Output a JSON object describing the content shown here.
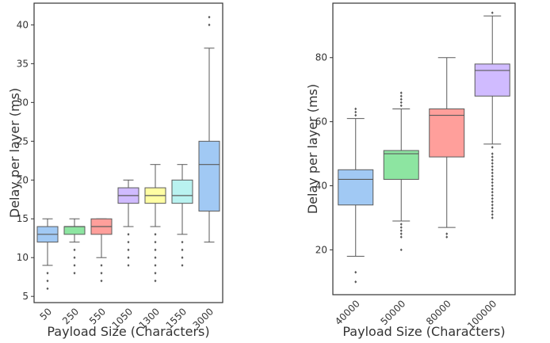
{
  "chart_data": [
    {
      "type": "box",
      "xlabel": "Payload Size (Characters)",
      "ylabel": "Delay per layer (ms)",
      "ylim": [
        4.2,
        42.8
      ],
      "yticks": [
        5,
        10,
        15,
        20,
        25,
        30,
        35,
        40
      ],
      "categories": [
        "50",
        "250",
        "550",
        "1050",
        "1300",
        "1550",
        "3000"
      ],
      "colors": [
        "#a1c9f4",
        "#8de5a1",
        "#ff9f9b",
        "#d0bbff",
        "#fffea3",
        "#b9f2f0",
        "#a1c9f4"
      ],
      "boxes": [
        {
          "whisker_low": 9,
          "q1": 12,
          "median": 13,
          "q3": 14,
          "whisker_high": 15,
          "outliers": [
            8,
            7,
            6
          ]
        },
        {
          "whisker_low": 12,
          "q1": 13,
          "median": 14,
          "q3": 14,
          "whisker_high": 15,
          "outliers": [
            11,
            10,
            9,
            8
          ]
        },
        {
          "whisker_low": 10,
          "q1": 13,
          "median": 14,
          "q3": 15,
          "whisker_high": 15,
          "outliers": [
            9,
            8,
            7
          ]
        },
        {
          "whisker_low": 14,
          "q1": 17,
          "median": 18,
          "q3": 19,
          "whisker_high": 20,
          "outliers": [
            13,
            12,
            11,
            10,
            9
          ]
        },
        {
          "whisker_low": 14,
          "q1": 17,
          "median": 18,
          "q3": 19,
          "whisker_high": 22,
          "outliers": [
            13,
            12,
            11,
            10,
            9,
            8,
            7
          ]
        },
        {
          "whisker_low": 13,
          "q1": 17,
          "median": 18,
          "q3": 20,
          "whisker_high": 22,
          "outliers": [
            12,
            11,
            10,
            9
          ]
        },
        {
          "whisker_low": 12,
          "q1": 16,
          "median": 22,
          "q3": 25,
          "whisker_high": 37,
          "outliers": [
            40,
            41
          ]
        }
      ]
    },
    {
      "type": "box",
      "xlabel": "Payload Size (Characters)",
      "ylabel": "Delay per layer (ms)",
      "ylim": [
        6,
        97
      ],
      "yticks": [
        20,
        40,
        60,
        80
      ],
      "categories": [
        "40000",
        "50000",
        "80000",
        "100000"
      ],
      "colors": [
        "#a1c9f4",
        "#8de5a1",
        "#ff9f9b",
        "#d0bbff"
      ],
      "boxes": [
        {
          "whisker_low": 18,
          "q1": 34,
          "median": 42,
          "q3": 45,
          "whisker_high": 61,
          "outliers": [
            62,
            63,
            64,
            13,
            10
          ]
        },
        {
          "whisker_low": 29,
          "q1": 42,
          "median": 50,
          "q3": 51,
          "whisker_high": 64,
          "outliers": [
            65,
            66,
            67,
            68,
            69,
            28,
            27,
            26,
            25,
            24,
            20
          ]
        },
        {
          "whisker_low": 27,
          "q1": 49,
          "median": 62,
          "q3": 64,
          "whisker_high": 80,
          "outliers": [
            25,
            24
          ]
        },
        {
          "whisker_low": 53,
          "q1": 68,
          "median": 76,
          "q3": 78,
          "whisker_high": 93,
          "outliers": [
            94,
            52,
            50,
            49,
            48,
            47,
            46,
            45,
            44,
            43,
            42,
            41,
            40,
            39,
            38,
            37,
            36,
            35,
            34,
            33,
            32,
            31,
            30
          ]
        }
      ]
    }
  ]
}
